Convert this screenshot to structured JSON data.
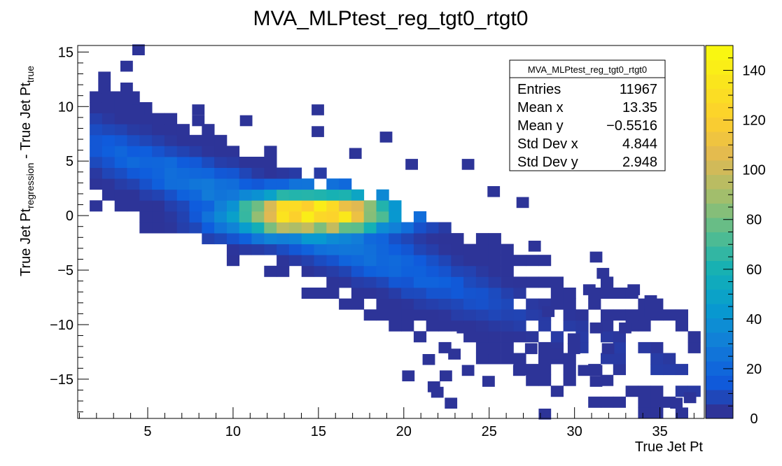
{
  "chart_data": {
    "type": "heatmap",
    "title": "MVA_MLPtest_reg_tgt0_rtgt0",
    "xlabel": "True Jet Pt",
    "ylabel": {
      "main": "True Jet Pt",
      "sub_regression": "regression",
      "mid": " - True Jet Pt",
      "sub_true": "true"
    },
    "xlim": [
      0.9,
      37.6
    ],
    "ylim": [
      -18.6,
      15.6
    ],
    "x_ticks": [
      5,
      10,
      15,
      20,
      25,
      30,
      35
    ],
    "x_tick_labels": [
      "5",
      "10",
      "15",
      "20",
      "25",
      "30",
      "35"
    ],
    "y_ticks": [
      -15,
      -10,
      -5,
      0,
      5,
      10,
      15
    ],
    "y_tick_labels": [
      "−15",
      "−10",
      "−5",
      "0",
      "5",
      "10",
      "15"
    ],
    "colorbar": {
      "range": [
        0,
        150
      ],
      "ticks": [
        0,
        20,
        40,
        60,
        80,
        100,
        120,
        140
      ],
      "tick_labels": [
        "0",
        "20",
        "40",
        "60",
        "80",
        "100",
        "120",
        "140"
      ]
    },
    "stats_box": {
      "name": "MVA_MLPtest_reg_tgt0_rtgt0",
      "rows": [
        {
          "label": "Entries",
          "value": "11967"
        },
        {
          "label": "Mean x",
          "value": "13.35"
        },
        {
          "label": "Mean y",
          "value": "−0.5516"
        },
        {
          "label": "Std Dev x",
          "value": "4.844"
        },
        {
          "label": "Std Dev y",
          "value": "2.948"
        }
      ]
    },
    "bin_width_x": 0.73,
    "bin_width_y": 1.0,
    "band": {
      "x_start": 1.6,
      "x_end": 37.0,
      "center_intercept": 7.5,
      "center_slope": -0.62,
      "half_width": 6.0,
      "peak_x": 14.3,
      "peak_y": 0.2,
      "peak_value": 148
    },
    "isolated_cells": [
      [
        4.1,
        15.2
      ],
      [
        3.4,
        13.7
      ],
      [
        2.1,
        12.7
      ],
      [
        2.1,
        11.7
      ],
      [
        3.4,
        11.7
      ],
      [
        4.1,
        9.7
      ],
      [
        7.6,
        9.7
      ],
      [
        14.6,
        9.7
      ],
      [
        7.6,
        8.7
      ],
      [
        10.4,
        8.7
      ],
      [
        14.6,
        7.7
      ],
      [
        18.6,
        7.2
      ],
      [
        16.8,
        5.7
      ],
      [
        20.1,
        4.7
      ],
      [
        23.4,
        4.7
      ],
      [
        24.9,
        2.2
      ],
      [
        26.6,
        1.2
      ],
      [
        27.3,
        -2.8
      ],
      [
        30.9,
        -3.8
      ],
      [
        31.3,
        -5.3
      ],
      [
        30.5,
        -6.8
      ],
      [
        33.1,
        -6.8
      ],
      [
        34.1,
        -7.8
      ],
      [
        34.1,
        -8.8
      ],
      [
        28.1,
        -8.8
      ],
      [
        30.9,
        -10.3
      ],
      [
        32.6,
        -10.3
      ],
      [
        23.1,
        -10.3
      ],
      [
        29.6,
        -11.3
      ],
      [
        31.6,
        -12.2
      ],
      [
        22.6,
        -12.7
      ],
      [
        24.9,
        -12.2
      ],
      [
        27.1,
        -12.2
      ],
      [
        28.6,
        -12.7
      ],
      [
        29.6,
        -12.2
      ],
      [
        21.1,
        -13.2
      ],
      [
        23.4,
        -14.2
      ],
      [
        26.4,
        -14.2
      ],
      [
        30.2,
        -14.2
      ],
      [
        30.9,
        -14.2
      ],
      [
        19.9,
        -14.7
      ],
      [
        22.1,
        -14.7
      ],
      [
        24.6,
        -15.2
      ],
      [
        30.9,
        -15.2
      ],
      [
        21.4,
        -15.7
      ],
      [
        21.6,
        -16.2
      ],
      [
        22.4,
        -17.2
      ],
      [
        35.6,
        -17.2
      ],
      [
        36.4,
        -16.7
      ],
      [
        27.9,
        -18.2
      ]
    ]
  }
}
